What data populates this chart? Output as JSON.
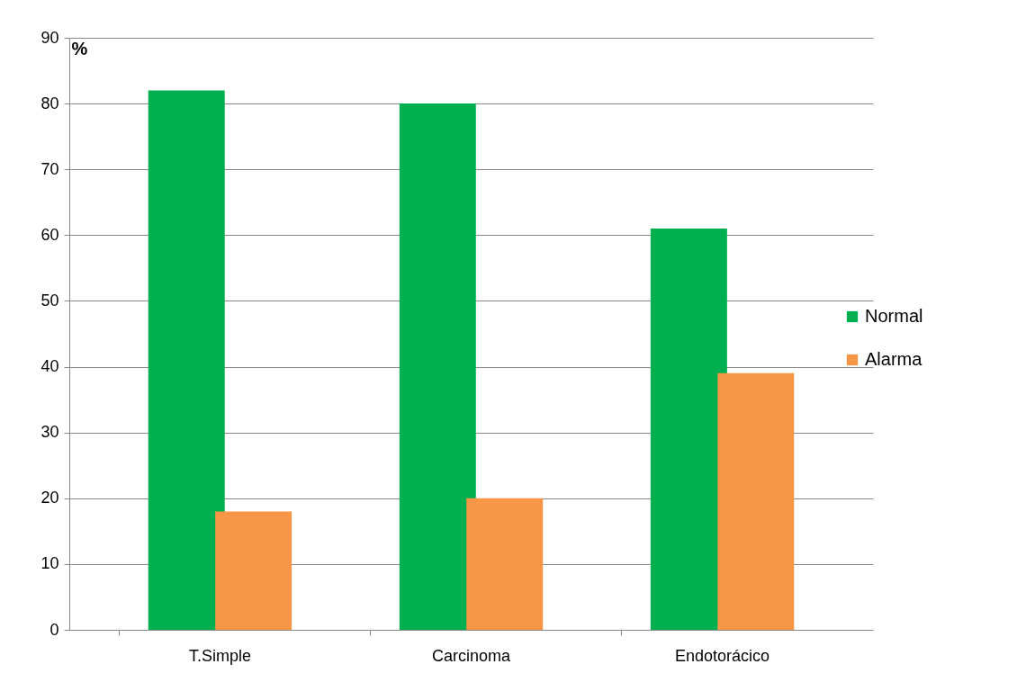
{
  "chart_data": {
    "type": "bar",
    "ylabel": "%",
    "categories": [
      "T.Simple",
      "Carcinoma",
      "Endotorácico"
    ],
    "series": [
      {
        "name": "Normal",
        "color": "#00b050",
        "values": [
          82,
          80,
          61
        ]
      },
      {
        "name": "Alarma",
        "color": "#f79646",
        "values": [
          18,
          20,
          39
        ]
      }
    ],
    "ylim": [
      0,
      90
    ],
    "yticks": [
      0,
      10,
      20,
      30,
      40,
      50,
      60,
      70,
      80,
      90
    ],
    "grid": "y",
    "legend": "right"
  }
}
